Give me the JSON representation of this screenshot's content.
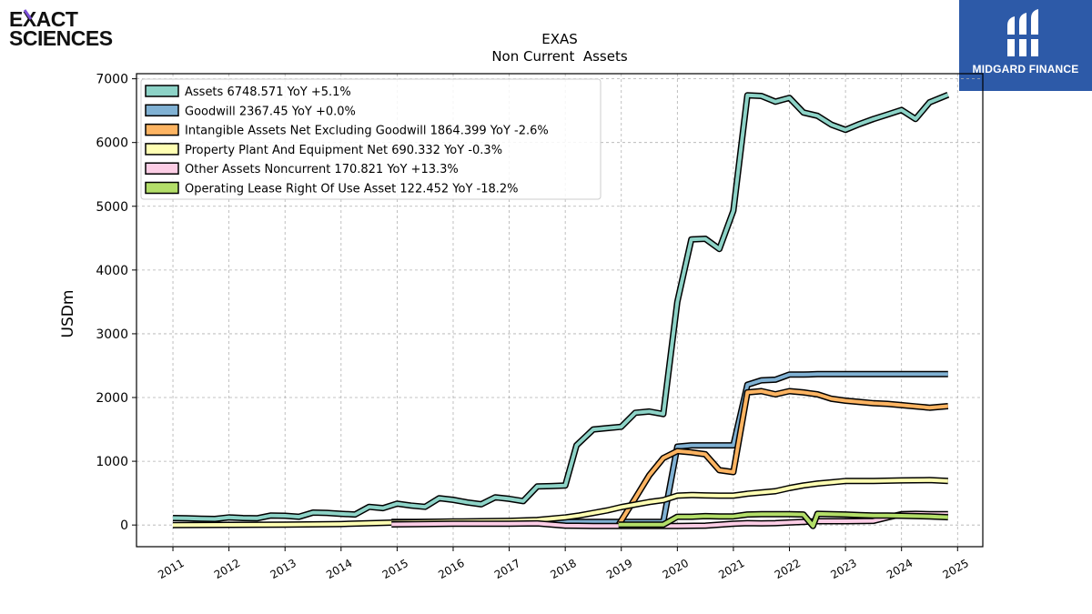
{
  "logos": {
    "left": {
      "line1": "EXACT",
      "line2": "SCIENCES"
    },
    "right": {
      "name": "MIDGARD FINANCE"
    }
  },
  "chart_data": {
    "type": "line",
    "title": "EXAS",
    "subtitle": "Non Current  Assets",
    "ylabel": "USDm",
    "xlabel": "",
    "xlim": [
      2010.35,
      2025.45
    ],
    "ylim": [
      -340,
      7080
    ],
    "yticks": [
      0,
      1000,
      2000,
      3000,
      4000,
      5000,
      6000,
      7000
    ],
    "xticks": [
      "2011",
      "2012",
      "2013",
      "2014",
      "2015",
      "2016",
      "2017",
      "2018",
      "2019",
      "2020",
      "2021",
      "2022",
      "2023",
      "2024",
      "2025"
    ],
    "grid": true,
    "legend_position": "top-left",
    "series": [
      {
        "name": "Assets",
        "legend": "Assets  6748.571 YoY +5.1%",
        "color": "#8dd3c7",
        "points": [
          [
            2011.0,
            110
          ],
          [
            2011.25,
            105
          ],
          [
            2011.5,
            100
          ],
          [
            2011.75,
            95
          ],
          [
            2012.0,
            120
          ],
          [
            2012.25,
            110
          ],
          [
            2012.5,
            105
          ],
          [
            2012.75,
            150
          ],
          [
            2013.0,
            145
          ],
          [
            2013.25,
            130
          ],
          [
            2013.5,
            195
          ],
          [
            2013.75,
            190
          ],
          [
            2014.0,
            175
          ],
          [
            2014.25,
            165
          ],
          [
            2014.5,
            285
          ],
          [
            2014.75,
            265
          ],
          [
            2015.0,
            335
          ],
          [
            2015.25,
            305
          ],
          [
            2015.5,
            285
          ],
          [
            2015.75,
            420
          ],
          [
            2016.0,
            395
          ],
          [
            2016.25,
            355
          ],
          [
            2016.5,
            325
          ],
          [
            2016.75,
            435
          ],
          [
            2017.0,
            410
          ],
          [
            2017.25,
            375
          ],
          [
            2017.5,
            605
          ],
          [
            2017.75,
            610
          ],
          [
            2018.0,
            620
          ],
          [
            2018.2,
            1250
          ],
          [
            2018.5,
            1500
          ],
          [
            2018.75,
            1520
          ],
          [
            2019.0,
            1540
          ],
          [
            2019.25,
            1760
          ],
          [
            2019.5,
            1780
          ],
          [
            2019.75,
            1740
          ],
          [
            2020.0,
            3500
          ],
          [
            2020.25,
            4480
          ],
          [
            2020.5,
            4490
          ],
          [
            2020.75,
            4330
          ],
          [
            2021.0,
            4930
          ],
          [
            2021.25,
            6740
          ],
          [
            2021.5,
            6730
          ],
          [
            2021.75,
            6640
          ],
          [
            2022.0,
            6700
          ],
          [
            2022.25,
            6470
          ],
          [
            2022.5,
            6420
          ],
          [
            2022.75,
            6280
          ],
          [
            2023.0,
            6200
          ],
          [
            2023.25,
            6290
          ],
          [
            2023.5,
            6370
          ],
          [
            2023.75,
            6440
          ],
          [
            2024.0,
            6510
          ],
          [
            2024.25,
            6370
          ],
          [
            2024.5,
            6630
          ],
          [
            2024.83,
            6749
          ]
        ]
      },
      {
        "name": "Goodwill",
        "legend": "Goodwill  2367.45 YoY +0.0%",
        "color": "#80b1d3",
        "points": [
          [
            2014.9,
            50
          ],
          [
            2015.0,
            50
          ],
          [
            2019.5,
            50
          ],
          [
            2019.75,
            50
          ],
          [
            2020.0,
            1230
          ],
          [
            2020.25,
            1250
          ],
          [
            2020.5,
            1250
          ],
          [
            2020.75,
            1250
          ],
          [
            2021.0,
            1250
          ],
          [
            2021.25,
            2200
          ],
          [
            2021.5,
            2270
          ],
          [
            2021.75,
            2280
          ],
          [
            2022.0,
            2360
          ],
          [
            2022.25,
            2360
          ],
          [
            2022.5,
            2367
          ],
          [
            2023.0,
            2367
          ],
          [
            2023.5,
            2367
          ],
          [
            2024.0,
            2367
          ],
          [
            2024.5,
            2367
          ],
          [
            2024.83,
            2367
          ]
        ]
      },
      {
        "name": "Intangible Assets Net Excluding Goodwill",
        "legend": "Intangible Assets Net Excluding Goodwill  1864.399 YoY -2.6%",
        "color": "#fdb462",
        "points": [
          [
            2018.95,
            0
          ],
          [
            2019.25,
            420
          ],
          [
            2019.5,
            780
          ],
          [
            2019.75,
            1050
          ],
          [
            2020.0,
            1160
          ],
          [
            2020.25,
            1140
          ],
          [
            2020.5,
            1110
          ],
          [
            2020.75,
            860
          ],
          [
            2021.0,
            830
          ],
          [
            2021.25,
            2080
          ],
          [
            2021.5,
            2100
          ],
          [
            2021.75,
            2050
          ],
          [
            2022.0,
            2100
          ],
          [
            2022.25,
            2080
          ],
          [
            2022.5,
            2050
          ],
          [
            2022.75,
            1980
          ],
          [
            2023.0,
            1950
          ],
          [
            2023.25,
            1930
          ],
          [
            2023.5,
            1910
          ],
          [
            2023.75,
            1900
          ],
          [
            2024.0,
            1880
          ],
          [
            2024.25,
            1860
          ],
          [
            2024.5,
            1840
          ],
          [
            2024.83,
            1864
          ]
        ]
      },
      {
        "name": "Property Plant And Equipment Net",
        "legend": "Property Plant And Equipment Net  690.332 YoY -0.3%",
        "color": "#ffffb3",
        "points": [
          [
            2011.0,
            0
          ],
          [
            2012.0,
            2
          ],
          [
            2013.0,
            5
          ],
          [
            2014.0,
            15
          ],
          [
            2015.0,
            40
          ],
          [
            2016.0,
            55
          ],
          [
            2016.5,
            60
          ],
          [
            2017.0,
            65
          ],
          [
            2017.5,
            80
          ],
          [
            2018.0,
            120
          ],
          [
            2018.25,
            150
          ],
          [
            2018.5,
            190
          ],
          [
            2018.75,
            230
          ],
          [
            2019.0,
            280
          ],
          [
            2019.25,
            320
          ],
          [
            2019.5,
            360
          ],
          [
            2019.75,
            390
          ],
          [
            2020.0,
            460
          ],
          [
            2020.25,
            470
          ],
          [
            2020.5,
            465
          ],
          [
            2020.75,
            460
          ],
          [
            2021.0,
            460
          ],
          [
            2021.25,
            490
          ],
          [
            2021.5,
            510
          ],
          [
            2021.75,
            530
          ],
          [
            2022.0,
            580
          ],
          [
            2022.25,
            620
          ],
          [
            2022.5,
            650
          ],
          [
            2022.75,
            670
          ],
          [
            2023.0,
            690
          ],
          [
            2023.5,
            692
          ],
          [
            2024.0,
            700
          ],
          [
            2024.5,
            705
          ],
          [
            2024.83,
            690
          ]
        ]
      },
      {
        "name": "Other Assets Noncurrent",
        "legend": "Other Assets Noncurrent  170.821 YoY +13.3%",
        "color": "#fccde5",
        "points": [
          [
            2014.9,
            10
          ],
          [
            2015.5,
            15
          ],
          [
            2016.0,
            20
          ],
          [
            2016.5,
            20
          ],
          [
            2017.0,
            20
          ],
          [
            2017.5,
            25
          ],
          [
            2018.0,
            -10
          ],
          [
            2018.5,
            -15
          ],
          [
            2019.0,
            -15
          ],
          [
            2019.5,
            -15
          ],
          [
            2020.0,
            -15
          ],
          [
            2020.5,
            -10
          ],
          [
            2021.0,
            20
          ],
          [
            2021.25,
            30
          ],
          [
            2021.5,
            25
          ],
          [
            2021.75,
            30
          ],
          [
            2022.0,
            40
          ],
          [
            2022.25,
            50
          ],
          [
            2022.5,
            60
          ],
          [
            2023.0,
            60
          ],
          [
            2023.5,
            65
          ],
          [
            2023.75,
            120
          ],
          [
            2024.0,
            170
          ],
          [
            2024.25,
            175
          ],
          [
            2024.5,
            170
          ],
          [
            2024.83,
            171
          ]
        ]
      },
      {
        "name": "Operating Lease Right Of Use Asset",
        "legend": "Operating Lease Right Of Use Asset  122.452 YoY -18.2%",
        "color": "#b3de69",
        "points": [
          [
            2018.95,
            5
          ],
          [
            2019.5,
            5
          ],
          [
            2019.75,
            5
          ],
          [
            2020.0,
            130
          ],
          [
            2020.25,
            130
          ],
          [
            2020.5,
            140
          ],
          [
            2020.75,
            135
          ],
          [
            2021.0,
            135
          ],
          [
            2021.25,
            165
          ],
          [
            2021.5,
            170
          ],
          [
            2021.75,
            170
          ],
          [
            2022.0,
            170
          ],
          [
            2022.25,
            165
          ],
          [
            2022.42,
            -15
          ],
          [
            2022.5,
            175
          ],
          [
            2022.75,
            170
          ],
          [
            2023.0,
            165
          ],
          [
            2023.25,
            155
          ],
          [
            2023.5,
            150
          ],
          [
            2023.75,
            150
          ],
          [
            2024.0,
            145
          ],
          [
            2024.25,
            140
          ],
          [
            2024.5,
            135
          ],
          [
            2024.83,
            122
          ]
        ]
      }
    ]
  }
}
